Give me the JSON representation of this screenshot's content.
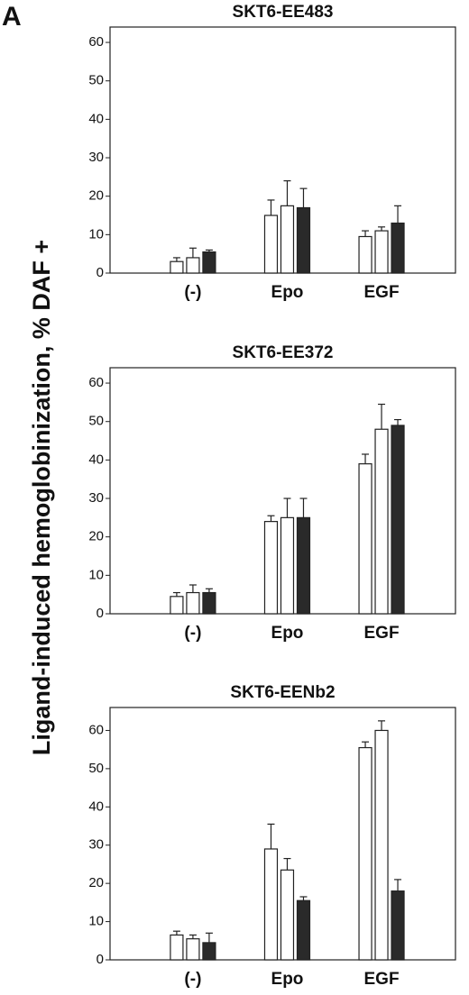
{
  "panel_label": "A",
  "ylabel": "Ligand-induced hemoglobinization, % DAF +",
  "chart_data": [
    {
      "type": "bar",
      "title": "SKT6-EE483",
      "categories": [
        "(-)",
        "Epo",
        "EGF"
      ],
      "series": [
        {
          "color": "#ffffff",
          "values": [
            3,
            15,
            9.5
          ],
          "errors": [
            1,
            4,
            1.5
          ]
        },
        {
          "color": "#ffffff",
          "values": [
            4,
            17.5,
            11
          ],
          "errors": [
            2.5,
            6.5,
            1
          ]
        },
        {
          "color": "#2a2a2a",
          "values": [
            5.5,
            17,
            13
          ],
          "errors": [
            0.5,
            5,
            4.5
          ]
        }
      ],
      "ylim": [
        0,
        64
      ],
      "yticks": [
        0,
        10,
        20,
        30,
        40,
        50,
        60
      ]
    },
    {
      "type": "bar",
      "title": "SKT6-EE372",
      "categories": [
        "(-)",
        "Epo",
        "EGF"
      ],
      "series": [
        {
          "color": "#ffffff",
          "values": [
            4.5,
            24,
            39
          ],
          "errors": [
            1,
            1.5,
            2.5
          ]
        },
        {
          "color": "#ffffff",
          "values": [
            5.5,
            25,
            48
          ],
          "errors": [
            2,
            5,
            6.5
          ]
        },
        {
          "color": "#2a2a2a",
          "values": [
            5.5,
            25,
            49
          ],
          "errors": [
            1,
            5,
            1.5
          ]
        }
      ],
      "ylim": [
        0,
        64
      ],
      "yticks": [
        0,
        10,
        20,
        30,
        40,
        50,
        60
      ]
    },
    {
      "type": "bar",
      "title": "SKT6-EENb2",
      "categories": [
        "(-)",
        "Epo",
        "EGF"
      ],
      "series": [
        {
          "color": "#ffffff",
          "values": [
            6.5,
            29,
            55.5
          ],
          "errors": [
            1,
            6.5,
            1.5
          ]
        },
        {
          "color": "#ffffff",
          "values": [
            5.5,
            23.5,
            60
          ],
          "errors": [
            1,
            3,
            2.5
          ]
        },
        {
          "color": "#2a2a2a",
          "values": [
            4.5,
            15.5,
            18
          ],
          "errors": [
            2.5,
            1,
            3
          ]
        }
      ],
      "ylim": [
        0,
        66
      ],
      "yticks": [
        0,
        10,
        20,
        30,
        40,
        50,
        60
      ]
    }
  ]
}
